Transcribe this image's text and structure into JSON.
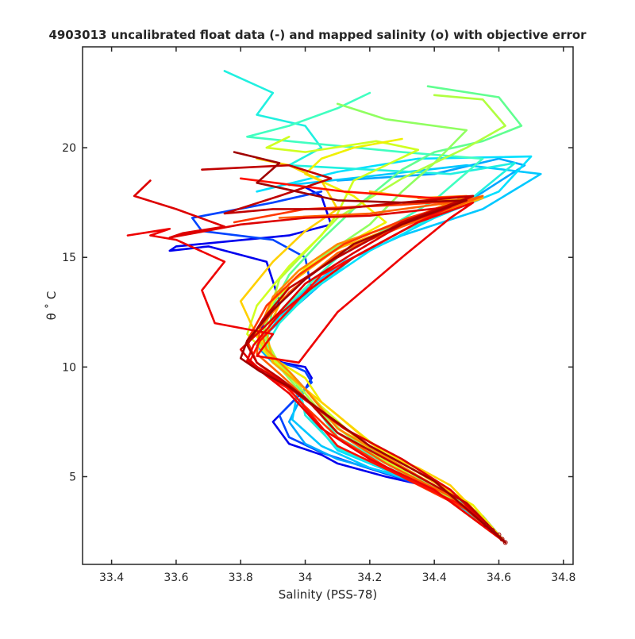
{
  "chart_data": {
    "type": "line",
    "title": "4903013 uncalibrated float data (-) and mapped salinity (o) with objective error",
    "xlabel": "Salinity (PSS-78)",
    "ylabel": "θ ˚ C",
    "xlim": [
      33.31,
      34.83
    ],
    "ylim": [
      1.0,
      24.6
    ],
    "xticks": [
      33.4,
      33.6,
      33.8,
      34.0,
      34.2,
      34.4,
      34.6,
      34.8
    ],
    "xtick_labels": [
      "33.4",
      "33.6",
      "33.8",
      "34",
      "34.2",
      "34.4",
      "34.6",
      "34.8"
    ],
    "yticks": [
      5,
      10,
      15,
      20
    ],
    "ytick_labels": [
      "5",
      "10",
      "15",
      "20"
    ],
    "grid": false,
    "legend": "none",
    "colormap": "jet",
    "colors": [
      "#0000ff",
      "#0050ff",
      "#00a0ff",
      "#00e8ff",
      "#30ffd0",
      "#80ff80",
      "#c8ff30",
      "#ffe800",
      "#ffa000",
      "#ff5000",
      "#f00000",
      "#a00000"
    ],
    "series": [
      {
        "x": [
          34.0,
          34.05,
          34.08,
          33.95,
          33.6,
          33.58,
          33.7,
          33.88,
          33.92,
          33.85,
          33.88,
          33.93,
          34.0,
          34.02,
          34.0,
          33.9,
          33.95,
          34.05,
          34.1,
          34.25,
          34.4,
          34.5,
          34.55,
          34.62
        ],
        "y": [
          18.2,
          17.8,
          16.5,
          16.0,
          15.5,
          15.3,
          15.5,
          14.8,
          13.0,
          11.5,
          10.5,
          10.2,
          10.0,
          9.5,
          9.0,
          7.5,
          6.5,
          6.0,
          5.6,
          5.0,
          4.5,
          3.8,
          3.0,
          2.0
        ]
      },
      {
        "x": [
          34.05,
          33.9,
          33.65,
          33.68,
          33.9,
          34.0,
          34.02,
          33.92,
          33.85,
          33.9,
          33.97,
          34.0,
          34.02,
          33.92,
          33.95,
          34.05,
          34.15,
          34.3,
          34.45,
          34.55,
          34.62
        ],
        "y": [
          18.0,
          17.5,
          16.8,
          16.2,
          15.8,
          15.0,
          13.5,
          12.5,
          11.0,
          10.3,
          10.0,
          9.8,
          9.3,
          7.8,
          6.8,
          6.1,
          5.6,
          4.9,
          4.2,
          3.2,
          2.0
        ]
      },
      {
        "x": [
          34.1,
          34.4,
          34.6,
          34.68,
          34.5,
          34.3,
          34.15,
          34.05,
          33.95,
          33.88,
          33.86,
          33.9,
          33.95,
          34.0,
          33.95,
          34.0,
          34.1,
          34.3,
          34.45,
          34.62
        ],
        "y": [
          18.5,
          18.8,
          19.5,
          19.2,
          17.5,
          16.2,
          15.0,
          13.8,
          12.5,
          11.5,
          10.8,
          10.2,
          9.8,
          9.0,
          7.5,
          6.5,
          5.8,
          5.0,
          4.3,
          2.0
        ]
      },
      {
        "x": [
          33.95,
          34.2,
          34.5,
          34.73,
          34.55,
          34.3,
          34.12,
          34.0,
          33.9,
          33.86,
          33.9,
          33.98,
          33.96,
          34.05,
          34.2,
          34.4,
          34.62
        ],
        "y": [
          18.3,
          18.7,
          19.2,
          18.8,
          17.2,
          16.0,
          14.8,
          13.5,
          12.2,
          11.0,
          10.2,
          9.2,
          7.6,
          6.4,
          5.4,
          4.5,
          2.0
        ]
      },
      {
        "x": [
          33.85,
          34.1,
          34.35,
          34.7,
          34.6,
          34.4,
          34.2,
          34.05,
          33.92,
          33.87,
          33.9,
          33.97,
          34.0,
          34.1,
          34.3,
          34.5,
          34.62
        ],
        "y": [
          18.0,
          18.9,
          19.5,
          19.6,
          18.0,
          16.8,
          15.3,
          13.8,
          12.3,
          11.2,
          10.3,
          9.4,
          8.0,
          6.2,
          5.0,
          3.8,
          2.0
        ]
      },
      {
        "x": [
          33.75,
          33.9,
          33.85,
          34.0,
          34.05,
          33.95,
          34.2,
          34.45,
          34.65,
          34.5,
          34.3,
          34.15,
          34.02,
          33.92,
          33.88,
          33.92,
          33.98,
          34.0,
          34.1,
          34.3,
          34.5,
          34.62
        ],
        "y": [
          23.5,
          22.5,
          21.5,
          21.0,
          20.0,
          19.2,
          19.0,
          18.8,
          19.3,
          17.5,
          16.2,
          15.0,
          13.5,
          12.0,
          11.0,
          10.2,
          9.3,
          7.8,
          6.3,
          5.0,
          3.8,
          2.0
        ]
      },
      {
        "x": [
          34.2,
          34.1,
          33.95,
          33.82,
          33.95,
          34.3,
          34.55,
          34.4,
          34.25,
          34.1,
          34.0,
          33.9,
          33.87,
          33.92,
          34.0,
          34.1,
          34.3,
          34.45,
          34.62
        ],
        "y": [
          22.5,
          21.8,
          21.0,
          20.5,
          20.3,
          19.8,
          19.5,
          17.6,
          16.3,
          15.0,
          13.6,
          12.2,
          11.0,
          10.1,
          8.8,
          6.8,
          5.2,
          4.2,
          2.0
        ]
      },
      {
        "x": [
          34.38,
          34.6,
          34.67,
          34.55,
          34.4,
          34.3,
          34.15,
          34.05,
          33.95,
          33.9,
          33.88,
          33.93,
          34.0,
          34.1,
          34.3,
          34.5,
          34.62
        ],
        "y": [
          22.8,
          22.3,
          21.0,
          20.3,
          19.8,
          19.0,
          17.2,
          15.8,
          14.2,
          12.8,
          11.0,
          10.0,
          9.0,
          7.2,
          5.4,
          3.8,
          2.0
        ]
      },
      {
        "x": [
          34.1,
          34.25,
          34.5,
          34.4,
          34.3,
          34.2,
          34.05,
          33.95,
          33.88,
          33.86,
          33.92,
          34.0,
          34.12,
          34.25,
          34.45,
          34.62
        ],
        "y": [
          22.0,
          21.3,
          20.8,
          19.3,
          18.0,
          16.5,
          15.0,
          13.8,
          12.2,
          11.0,
          10.0,
          8.6,
          7.0,
          5.6,
          4.2,
          2.0
        ]
      },
      {
        "x": [
          34.4,
          34.55,
          34.62,
          34.5,
          34.3,
          34.1,
          33.92,
          33.87,
          33.92,
          34.0,
          34.1,
          34.3,
          34.5,
          34.62
        ],
        "y": [
          22.4,
          22.2,
          21.0,
          20.0,
          18.6,
          16.8,
          14.0,
          11.5,
          10.1,
          8.8,
          7.0,
          5.2,
          3.6,
          2.0
        ]
      },
      {
        "x": [
          33.95,
          33.88,
          34.0,
          34.22,
          34.35,
          34.15,
          34.1,
          34.05,
          33.95,
          33.85,
          33.82,
          33.9,
          33.98,
          34.05,
          34.2,
          34.4,
          34.62
        ],
        "y": [
          20.5,
          20.0,
          19.8,
          20.3,
          19.9,
          18.5,
          17.0,
          16.0,
          14.6,
          12.8,
          11.5,
          10.3,
          9.3,
          8.2,
          6.2,
          4.4,
          2.0
        ]
      },
      {
        "x": [
          34.3,
          34.15,
          34.05,
          34.0,
          34.15,
          34.25,
          34.15,
          34.0,
          33.9,
          33.85,
          33.9,
          34.0,
          34.05,
          34.2,
          34.35,
          34.52,
          34.62
        ],
        "y": [
          20.4,
          20.0,
          19.5,
          18.8,
          17.8,
          16.6,
          15.8,
          14.5,
          13.0,
          11.6,
          10.4,
          9.5,
          8.4,
          6.6,
          5.2,
          3.7,
          2.0
        ]
      },
      {
        "x": [
          33.85,
          33.95,
          34.05,
          34.1,
          34.0,
          33.9,
          33.8,
          33.85,
          33.9,
          34.0,
          34.1,
          34.18,
          34.25,
          34.35,
          34.45,
          34.62
        ],
        "y": [
          19.5,
          19.2,
          18.5,
          17.2,
          16.2,
          14.8,
          13.0,
          11.4,
          10.2,
          9.0,
          7.8,
          6.8,
          6.0,
          5.4,
          4.6,
          2.0
        ]
      },
      {
        "x": [
          34.2,
          34.3,
          34.45,
          34.55,
          34.3,
          34.1,
          33.95,
          33.88,
          33.9,
          34.0,
          34.08,
          34.2,
          34.35,
          34.48,
          34.62
        ],
        "y": [
          18.0,
          17.8,
          17.6,
          17.7,
          16.5,
          15.4,
          13.8,
          11.6,
          10.2,
          9.0,
          7.6,
          6.4,
          5.2,
          4.0,
          2.0
        ]
      },
      {
        "x": [
          34.35,
          34.5,
          34.3,
          34.1,
          33.98,
          33.9,
          33.86,
          33.88,
          33.95,
          34.0,
          34.1,
          34.25,
          34.4,
          34.52,
          34.62
        ],
        "y": [
          17.7,
          17.8,
          16.6,
          15.6,
          14.4,
          13.2,
          11.8,
          10.8,
          9.8,
          9.0,
          7.2,
          5.9,
          4.6,
          3.4,
          2.0
        ]
      },
      {
        "x": [
          33.92,
          34.2,
          34.5,
          34.55,
          34.3,
          34.1,
          33.95,
          33.86,
          33.85,
          33.92,
          34.0,
          34.1,
          34.25,
          34.45,
          34.62
        ],
        "y": [
          16.8,
          17.0,
          17.6,
          17.8,
          16.4,
          15.2,
          13.4,
          11.8,
          10.6,
          9.7,
          8.6,
          7.0,
          5.6,
          4.1,
          2.0
        ]
      },
      {
        "x": [
          33.78,
          34.0,
          34.3,
          34.5,
          34.32,
          34.12,
          33.98,
          33.88,
          33.82,
          33.85,
          33.92,
          34.0,
          34.1,
          34.3,
          34.5,
          34.62
        ],
        "y": [
          16.6,
          17.2,
          17.4,
          17.6,
          16.8,
          15.6,
          14.2,
          12.8,
          11.2,
          10.2,
          9.4,
          8.2,
          6.8,
          5.0,
          3.5,
          2.0
        ]
      },
      {
        "x": [
          33.8,
          34.12,
          34.4,
          34.52,
          34.35,
          34.2,
          34.05,
          33.95,
          33.86,
          33.83,
          33.88,
          33.95,
          34.02,
          34.1,
          34.3,
          34.5,
          34.62
        ],
        "y": [
          18.6,
          18.0,
          17.7,
          17.8,
          16.6,
          15.4,
          14.2,
          12.6,
          11.2,
          10.3,
          9.6,
          9.0,
          7.8,
          6.4,
          5.0,
          3.6,
          2.0
        ]
      },
      {
        "x": [
          33.45,
          33.58,
          33.52,
          33.6,
          33.75,
          33.68,
          33.72,
          33.9,
          33.85,
          33.98,
          34.1,
          34.3,
          34.45,
          34.52,
          34.35,
          34.15,
          34.02,
          33.92,
          33.84,
          33.82,
          33.88,
          33.95,
          34.05,
          34.2,
          34.4,
          34.62
        ],
        "y": [
          16.0,
          16.3,
          16.0,
          15.8,
          14.8,
          13.5,
          12.0,
          11.5,
          10.5,
          10.2,
          12.5,
          15.0,
          16.8,
          17.5,
          16.6,
          15.0,
          13.6,
          12.4,
          11.0,
          10.3,
          9.6,
          8.8,
          7.2,
          5.8,
          4.4,
          2.0
        ]
      },
      {
        "x": [
          33.52,
          33.47,
          33.6,
          33.75,
          33.62,
          33.58,
          33.8,
          34.0,
          34.2,
          34.45,
          34.3,
          34.15,
          34.0,
          33.92,
          33.85,
          33.8,
          33.84,
          33.92,
          34.0,
          34.12,
          34.3,
          34.45,
          34.62
        ],
        "y": [
          18.5,
          17.8,
          17.2,
          16.4,
          16.1,
          15.9,
          16.5,
          16.8,
          16.9,
          17.3,
          16.5,
          15.2,
          13.8,
          12.5,
          11.5,
          10.8,
          10.1,
          9.4,
          8.5,
          7.2,
          5.8,
          4.4,
          2.0
        ]
      },
      {
        "x": [
          33.68,
          33.95,
          34.08,
          33.92,
          33.75,
          33.9,
          34.1,
          34.3,
          34.52,
          34.3,
          34.1,
          33.95,
          33.87,
          33.82,
          33.85,
          33.92,
          34.0,
          34.1,
          34.3,
          34.5,
          34.62
        ],
        "y": [
          19.0,
          19.2,
          18.6,
          17.8,
          17.0,
          17.2,
          17.2,
          17.5,
          17.8,
          16.6,
          15.0,
          13.6,
          12.2,
          11.0,
          10.2,
          9.5,
          8.6,
          7.0,
          5.4,
          3.8,
          2.0
        ]
      },
      {
        "x": [
          33.78,
          33.92,
          33.85,
          34.1,
          34.3,
          34.5,
          34.35,
          34.15,
          34.0,
          33.9,
          33.82,
          33.8,
          33.86,
          33.95,
          34.05,
          34.2,
          34.4,
          34.62
        ],
        "y": [
          19.8,
          19.3,
          18.4,
          17.6,
          17.5,
          17.6,
          16.8,
          15.6,
          14.0,
          12.6,
          11.2,
          10.4,
          9.8,
          9.1,
          8.0,
          6.4,
          4.8,
          2.0
        ]
      }
    ],
    "series_colors": [
      "#0000ee",
      "#0044ff",
      "#00a6ff",
      "#00c8ff",
      "#00e0ff",
      "#20f0e0",
      "#40ffc0",
      "#60ff90",
      "#90ff60",
      "#b0ff40",
      "#d0ff20",
      "#f0f000",
      "#ffd000",
      "#ffb000",
      "#ff8800",
      "#ff6000",
      "#ff3800",
      "#ff1000",
      "#ee0000",
      "#dd0000",
      "#c00000",
      "#a00000"
    ]
  }
}
